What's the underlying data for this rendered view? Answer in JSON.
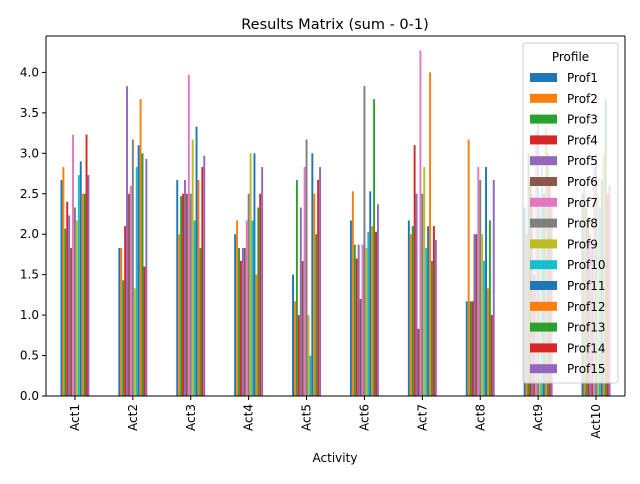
{
  "chart_data": {
    "type": "bar",
    "title": "Results Matrix (sum - 0-1)",
    "xlabel": "Activity",
    "ylabel": "",
    "ylim": [
      0,
      4.45
    ],
    "yticks": [
      "0.0",
      "0.5",
      "1.0",
      "1.5",
      "2.0",
      "2.5",
      "3.0",
      "3.5",
      "4.0"
    ],
    "grid": false,
    "legend_title": "Profile",
    "legend_position": "upper-right",
    "categories": [
      "Act1",
      "Act2",
      "Act3",
      "Act4",
      "Act5",
      "Act6",
      "Act7",
      "Act8",
      "Act9",
      "Act10"
    ],
    "series": [
      {
        "name": "Prof1",
        "color": "#1f77b4",
        "values": [
          2.67,
          1.83,
          2.67,
          2.0,
          1.5,
          2.17,
          2.17,
          1.17,
          2.33,
          2.5
        ]
      },
      {
        "name": "Prof2",
        "color": "#ff7f0e",
        "values": [
          2.83,
          1.83,
          2.0,
          2.17,
          1.17,
          2.53,
          2.0,
          3.17,
          2.0,
          2.67
        ]
      },
      {
        "name": "Prof3",
        "color": "#2ca02c",
        "values": [
          2.07,
          1.43,
          2.47,
          1.83,
          2.67,
          1.87,
          2.1,
          1.17,
          3.0,
          2.33
        ]
      },
      {
        "name": "Prof4",
        "color": "#d62728",
        "values": [
          2.4,
          2.1,
          2.5,
          1.67,
          1.0,
          1.7,
          3.1,
          1.17,
          2.67,
          2.2
        ]
      },
      {
        "name": "Prof5",
        "color": "#9467bd",
        "values": [
          2.23,
          3.83,
          2.67,
          1.83,
          2.33,
          1.87,
          2.5,
          2.0,
          2.5,
          2.0
        ]
      },
      {
        "name": "Prof6",
        "color": "#8c564b",
        "values": [
          1.83,
          2.5,
          2.5,
          1.83,
          1.67,
          1.2,
          0.83,
          2.0,
          1.5,
          1.83
        ]
      },
      {
        "name": "Prof7",
        "color": "#e377c2",
        "values": [
          3.23,
          2.6,
          3.97,
          2.17,
          2.83,
          1.87,
          4.27,
          2.83,
          3.27,
          2.83
        ]
      },
      {
        "name": "Prof8",
        "color": "#7f7f7f",
        "values": [
          2.33,
          3.17,
          2.5,
          2.5,
          3.17,
          3.83,
          2.5,
          2.67,
          3.5,
          3.0
        ]
      },
      {
        "name": "Prof9",
        "color": "#bcbd22",
        "values": [
          2.17,
          1.33,
          3.17,
          3.0,
          1.0,
          1.83,
          2.83,
          2.0,
          2.33,
          2.5
        ]
      },
      {
        "name": "Prof10",
        "color": "#17becf",
        "values": [
          2.73,
          2.83,
          2.17,
          2.17,
          0.5,
          2.03,
          1.83,
          1.67,
          2.83,
          2.33
        ]
      },
      {
        "name": "Prof11",
        "color": "#1f77b4",
        "values": [
          2.9,
          3.1,
          3.33,
          3.0,
          3.0,
          2.53,
          2.1,
          2.83,
          2.5,
          2.67
        ]
      },
      {
        "name": "Prof12",
        "color": "#ff7f0e",
        "values": [
          2.5,
          3.67,
          2.67,
          1.5,
          2.5,
          2.1,
          4.0,
          1.33,
          3.33,
          3.0
        ]
      },
      {
        "name": "Prof13",
        "color": "#2ca02c",
        "values": [
          2.5,
          3.0,
          1.83,
          2.33,
          2.0,
          3.67,
          1.67,
          2.17,
          3.0,
          3.67
        ]
      },
      {
        "name": "Prof14",
        "color": "#d62728",
        "values": [
          3.23,
          1.6,
          2.83,
          2.5,
          2.67,
          2.03,
          2.1,
          1.0,
          2.67,
          2.5
        ]
      },
      {
        "name": "Prof15",
        "color": "#9467bd",
        "values": [
          2.73,
          2.93,
          2.97,
          2.83,
          2.83,
          2.37,
          1.93,
          2.67,
          2.33,
          2.6
        ]
      }
    ]
  }
}
